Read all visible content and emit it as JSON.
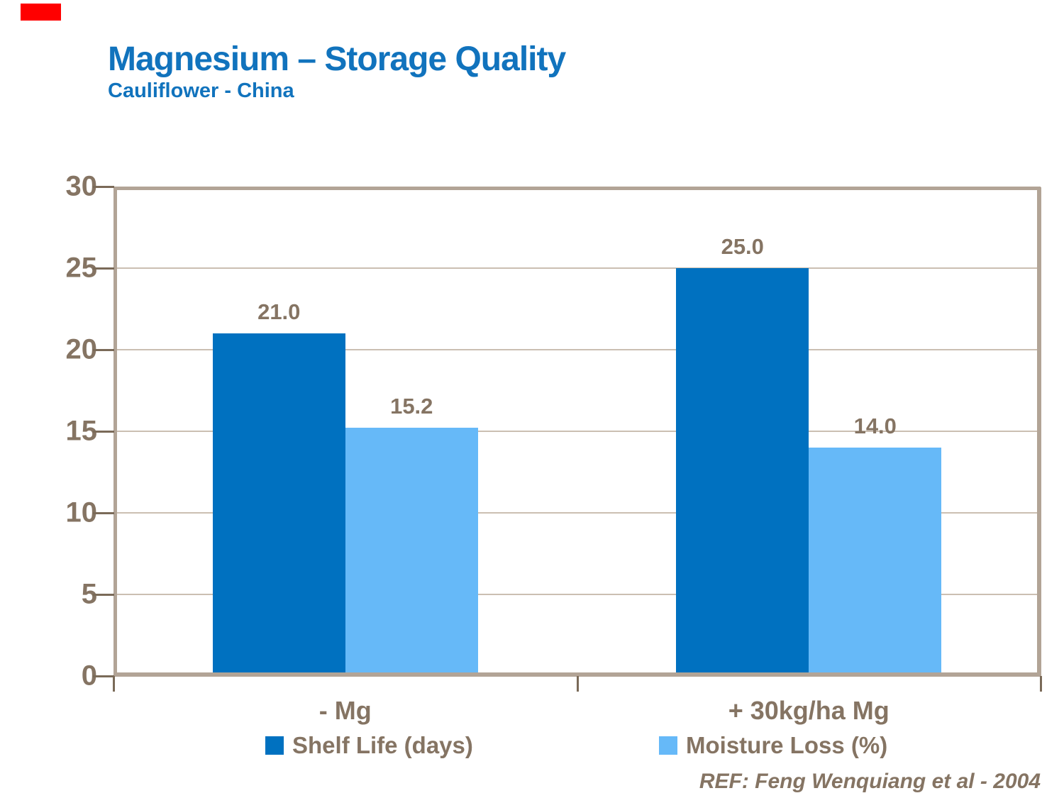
{
  "page": {
    "background": "#FFFFFF"
  },
  "decor": {
    "red_flag_color": "#FF0000"
  },
  "header": {
    "title": "Magnesium – Storage Quality",
    "subtitle": "Cauliflower - China",
    "title_color": "#1173BD"
  },
  "chart_data": {
    "type": "bar",
    "title": "Magnesium – Storage Quality",
    "subtitle": "Cauliflower - China",
    "categories": [
      "- Mg",
      "+ 30kg/ha Mg"
    ],
    "series": [
      {
        "name": "Shelf Life (days)",
        "color": "#0071C0",
        "values": [
          21.0,
          25.0
        ]
      },
      {
        "name": "Moisture Loss (%)",
        "color": "#66B9F8",
        "values": [
          15.2,
          14.0
        ]
      }
    ],
    "value_label_decimals": 1,
    "ylim": [
      0,
      30
    ],
    "yticks": [
      0,
      5,
      10,
      15,
      20,
      25,
      30
    ],
    "grid": true,
    "legend_position": "bottom",
    "colors": {
      "axis_border": "#B2A496",
      "gridline": "#CBBFB2",
      "tick": "#7A6A58",
      "labels": "#857463"
    }
  },
  "footer": {
    "reference": "REF: Feng Wenquiang et al - 2004"
  }
}
